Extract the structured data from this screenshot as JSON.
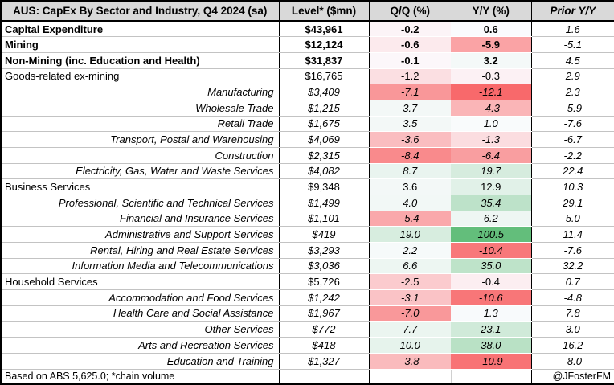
{
  "table": {
    "title": "AUS: CapEx By Sector and Industry, Q4 2024 (sa)",
    "columns": {
      "level": "Level* ($mn)",
      "qq": "Q/Q (%)",
      "yy": "Y/Y (%)",
      "prior": "Prior Y/Y"
    },
    "footer": {
      "source_note": "Based on ABS 5,625.0; *chain volume",
      "author_handle": "@JFosterFM"
    }
  },
  "colors": {
    "header_bg": "#D9D9D9",
    "border_dark": "#000000",
    "row_line": "#C3C3C3",
    "heat_red": "#F8696B",
    "heat_white": "#FCFCFF",
    "heat_green": "#63BE7B"
  },
  "heat_scale": {
    "min": -12.1,
    "mid": 0,
    "max": 100.5
  },
  "chart_data": {
    "type": "table",
    "title": "AUS: CapEx By Sector and Industry, Q4 2024 (sa)",
    "columns": [
      "Level* ($mn)",
      "Q/Q (%)",
      "Y/Y (%)",
      "Prior Y/Y"
    ],
    "heatmap_columns": [
      "Q/Q (%)",
      "Y/Y (%)"
    ],
    "rows": [
      {
        "label": "Capital Expenditure",
        "level": "$43,961",
        "qq": -0.2,
        "yy": 0.6,
        "prior": 1.6,
        "style": "total"
      },
      {
        "label": "Mining",
        "level": "$12,124",
        "qq": -0.6,
        "yy": -5.9,
        "prior": -5.1,
        "style": "total"
      },
      {
        "label": "Non-Mining (inc. Education and Health)",
        "level": "$31,837",
        "qq": -0.1,
        "yy": 3.2,
        "prior": 4.5,
        "style": "total"
      },
      {
        "label": "Goods-related ex-mining",
        "level": "$16,765",
        "qq": -1.2,
        "yy": -0.3,
        "prior": 2.9,
        "style": "group"
      },
      {
        "label": "Manufacturing",
        "level": "$3,409",
        "qq": -7.1,
        "yy": -12.1,
        "prior": 2.3,
        "style": "sub"
      },
      {
        "label": "Wholesale Trade",
        "level": "$1,215",
        "qq": 3.7,
        "yy": -4.3,
        "prior": -5.9,
        "style": "sub"
      },
      {
        "label": "Retail Trade",
        "level": "$1,675",
        "qq": 3.5,
        "yy": 1.0,
        "prior": -7.6,
        "style": "sub"
      },
      {
        "label": "Transport, Postal and Warehousing",
        "level": "$4,069",
        "qq": -3.6,
        "yy": -1.3,
        "prior": -6.7,
        "style": "sub"
      },
      {
        "label": "Construction",
        "level": "$2,315",
        "qq": -8.4,
        "yy": -6.4,
        "prior": -2.2,
        "style": "sub"
      },
      {
        "label": "Electricity, Gas, Water and Waste Services",
        "level": "$4,082",
        "qq": 8.7,
        "yy": 19.7,
        "prior": 22.4,
        "style": "sub"
      },
      {
        "label": "Business Services",
        "level": "$9,348",
        "qq": 3.6,
        "yy": 12.9,
        "prior": 10.3,
        "style": "group"
      },
      {
        "label": "Professional, Scientific and Technical Services",
        "level": "$1,499",
        "qq": 4.0,
        "yy": 35.4,
        "prior": 29.1,
        "style": "sub"
      },
      {
        "label": "Financial and Insurance Services",
        "level": "$1,101",
        "qq": -5.4,
        "yy": 6.2,
        "prior": 5.0,
        "style": "sub"
      },
      {
        "label": "Administrative and Support Services",
        "level": "$419",
        "qq": 19.0,
        "yy": 100.5,
        "prior": 11.4,
        "style": "sub"
      },
      {
        "label": "Rental, Hiring and Real Estate Services",
        "level": "$3,293",
        "qq": 2.2,
        "yy": -10.4,
        "prior": -7.6,
        "style": "sub"
      },
      {
        "label": "Information Media and Telecommunications",
        "level": "$3,036",
        "qq": 6.6,
        "yy": 35.0,
        "prior": 32.2,
        "style": "sub"
      },
      {
        "label": "Household Services",
        "level": "$5,726",
        "qq": -2.5,
        "yy": -0.4,
        "prior": 0.7,
        "style": "group"
      },
      {
        "label": "Accommodation and Food Services",
        "level": "$1,242",
        "qq": -3.1,
        "yy": -10.6,
        "prior": -4.8,
        "style": "sub"
      },
      {
        "label": "Health Care and Social Assistance",
        "level": "$1,967",
        "qq": -7.0,
        "yy": 1.3,
        "prior": 7.8,
        "style": "sub"
      },
      {
        "label": "Other Services",
        "level": "$772",
        "qq": 7.7,
        "yy": 23.1,
        "prior": 3.0,
        "style": "sub"
      },
      {
        "label": "Arts and Recreation Services",
        "level": "$418",
        "qq": 10.0,
        "yy": 38.0,
        "prior": 16.2,
        "style": "sub"
      },
      {
        "label": "Education and Training",
        "level": "$1,327",
        "qq": -3.8,
        "yy": -10.9,
        "prior": -8.0,
        "style": "sub"
      }
    ]
  }
}
